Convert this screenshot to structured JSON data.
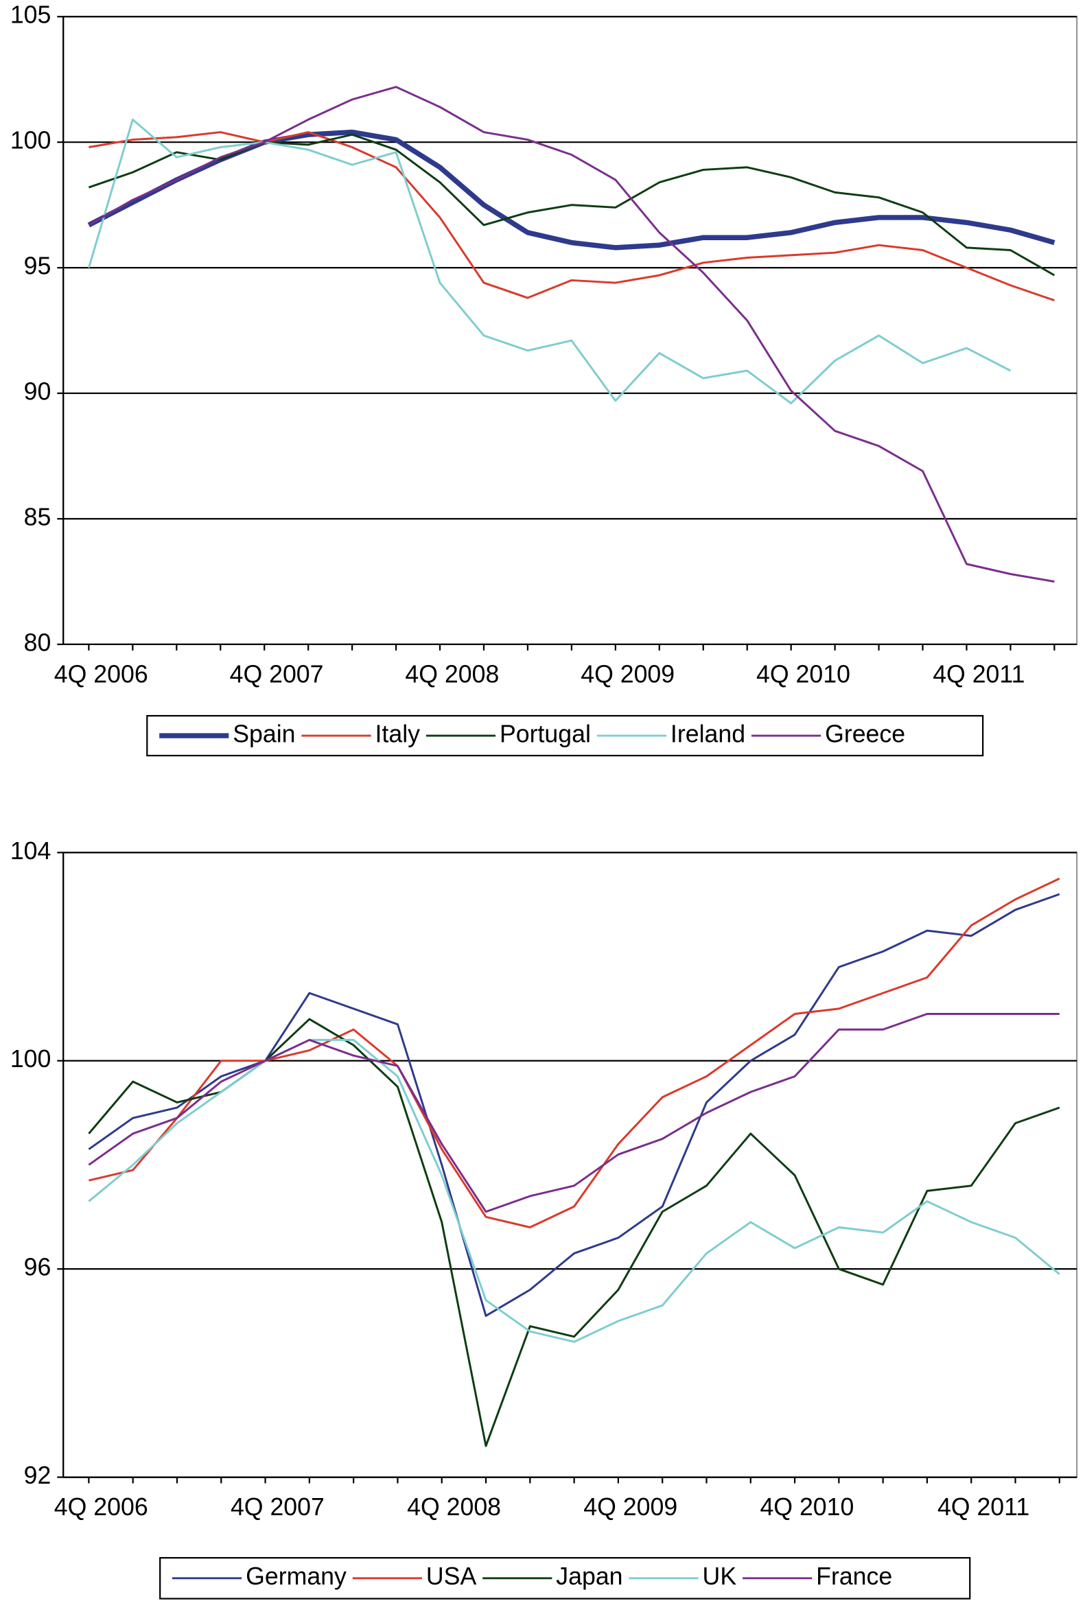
{
  "chart_data": [
    {
      "type": "line",
      "legend": "bottom",
      "grid": true,
      "categories": [
        "4Q 2006",
        null,
        null,
        null,
        "4Q 2007",
        null,
        null,
        null,
        "4Q 2008",
        null,
        null,
        null,
        "4Q 2009",
        null,
        null,
        null,
        "4Q 2010",
        null,
        null,
        null,
        "4Q 2011",
        null,
        null
      ],
      "ylim": [
        80,
        105
      ],
      "yticks": [
        80,
        85,
        90,
        95,
        100,
        105
      ],
      "series": [
        {
          "name": "Spain",
          "color": "#2e3a8c",
          "width": 5,
          "values": [
            96.7,
            97.6,
            98.5,
            99.3,
            100,
            100.3,
            100.4,
            100.1,
            99.0,
            97.5,
            96.4,
            96.0,
            95.8,
            95.9,
            96.2,
            96.2,
            96.4,
            96.8,
            97.0,
            97.0,
            96.8,
            96.5,
            96.0
          ]
        },
        {
          "name": "Italy",
          "color": "#d93a2b",
          "width": 2,
          "values": [
            99.8,
            100.1,
            100.2,
            100.4,
            100.0,
            100.4,
            99.8,
            99.0,
            97.0,
            94.4,
            93.8,
            94.5,
            94.4,
            94.7,
            95.2,
            95.4,
            95.5,
            95.6,
            95.9,
            95.7,
            95.0,
            94.3,
            93.7
          ]
        },
        {
          "name": "Portugal",
          "color": "#0d3d12",
          "width": 2,
          "values": [
            98.2,
            98.8,
            99.6,
            99.3,
            100.0,
            99.9,
            100.3,
            99.7,
            98.4,
            96.7,
            97.2,
            97.5,
            97.4,
            98.4,
            98.9,
            99.0,
            98.6,
            98.0,
            97.8,
            97.2,
            95.8,
            95.7,
            94.7
          ]
        },
        {
          "name": "Ireland",
          "color": "#7ecdcf",
          "width": 2,
          "values": [
            95.0,
            100.9,
            99.4,
            99.8,
            100.0,
            99.7,
            99.1,
            99.6,
            94.4,
            92.3,
            91.7,
            92.1,
            89.7,
            91.6,
            90.6,
            90.9,
            89.6,
            91.3,
            92.3,
            91.2,
            91.8,
            90.9,
            null
          ]
        },
        {
          "name": "Greece",
          "color": "#7a2e8c",
          "width": 2,
          "values": [
            96.7,
            97.7,
            98.5,
            99.4,
            100.0,
            100.9,
            101.7,
            102.2,
            101.4,
            100.4,
            100.1,
            99.5,
            98.5,
            96.4,
            94.8,
            92.9,
            90.1,
            88.5,
            87.9,
            86.9,
            83.2,
            82.8,
            82.5
          ]
        }
      ]
    },
    {
      "type": "line",
      "legend": "bottom",
      "grid": true,
      "categories": [
        "4Q 2006",
        null,
        null,
        null,
        "4Q 2007",
        null,
        null,
        null,
        "4Q 2008",
        null,
        null,
        null,
        "4Q 2009",
        null,
        null,
        null,
        "4Q 2010",
        null,
        null,
        null,
        "4Q 2011",
        null,
        null
      ],
      "ylim": [
        92,
        104
      ],
      "yticks": [
        92,
        96,
        100,
        104
      ],
      "series": [
        {
          "name": "Germany",
          "color": "#2e3a8c",
          "width": 2,
          "values": [
            98.3,
            98.9,
            99.1,
            99.7,
            100.0,
            101.3,
            101.0,
            100.7,
            98.0,
            95.1,
            95.6,
            96.3,
            96.6,
            97.2,
            99.2,
            100.0,
            100.5,
            101.8,
            102.1,
            102.5,
            102.4,
            102.9,
            103.2
          ]
        },
        {
          "name": "USA",
          "color": "#d93a2b",
          "width": 2,
          "values": [
            97.7,
            97.9,
            98.9,
            100.0,
            100.0,
            100.2,
            100.6,
            99.9,
            98.3,
            97.0,
            96.8,
            97.2,
            98.4,
            99.3,
            99.7,
            100.3,
            100.9,
            101.0,
            101.3,
            101.6,
            102.6,
            103.1,
            103.5
          ]
        },
        {
          "name": "Japan",
          "color": "#0d3d12",
          "width": 2,
          "values": [
            98.6,
            99.6,
            99.2,
            99.4,
            100.0,
            100.8,
            100.3,
            99.5,
            96.9,
            92.6,
            94.9,
            94.7,
            95.6,
            97.1,
            97.6,
            98.6,
            97.8,
            96.0,
            95.7,
            97.5,
            97.6,
            98.8,
            99.1
          ]
        },
        {
          "name": "UK",
          "color": "#7ecdcf",
          "width": 2,
          "values": [
            97.3,
            98.0,
            98.8,
            99.4,
            100.0,
            100.4,
            100.4,
            99.7,
            97.8,
            95.4,
            94.8,
            94.6,
            95.0,
            95.3,
            96.3,
            96.9,
            96.4,
            96.8,
            96.7,
            97.3,
            96.9,
            96.6,
            95.9
          ]
        },
        {
          "name": "France",
          "color": "#7a2e8c",
          "width": 2,
          "values": [
            98.0,
            98.6,
            98.9,
            99.6,
            100.0,
            100.4,
            100.1,
            99.9,
            98.4,
            97.1,
            97.4,
            97.6,
            98.2,
            98.5,
            99.0,
            99.4,
            99.7,
            100.6,
            100.6,
            100.9,
            100.9,
            100.9,
            100.9
          ]
        }
      ]
    }
  ]
}
